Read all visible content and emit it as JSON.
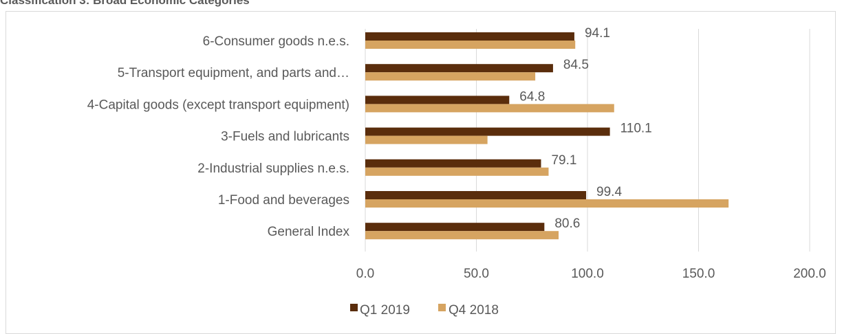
{
  "page": {
    "title": "Classification 3:  Broad Economic Categories"
  },
  "colors": {
    "q1": "#5a2d0c",
    "q4": "#d6a461",
    "grid": "#d9d9d9",
    "text": "#595959"
  },
  "chart_data": {
    "type": "bar",
    "orientation": "horizontal",
    "title": "",
    "xlabel": "",
    "ylabel": "",
    "xlim": [
      0,
      200
    ],
    "x_ticks": [
      "0.0",
      "50.0",
      "100.0",
      "150.0",
      "200.0"
    ],
    "grid": true,
    "legend_position": "bottom",
    "categories": [
      "6-Consumer goods n.e.s.",
      "5-Transport equipment, and parts and…",
      "4-Capital goods (except transport equipment)",
      "3-Fuels and lubricants",
      "2-Industrial supplies n.e.s.",
      "1-Food and beverages",
      "General Index"
    ],
    "series": [
      {
        "name": "Q1 2019",
        "color": "#5a2d0c",
        "values": [
          94.1,
          84.5,
          64.8,
          110.1,
          79.1,
          99.4,
          80.6
        ]
      },
      {
        "name": "Q4 2018",
        "color": "#d6a461",
        "values": [
          94.5,
          76.5,
          112.0,
          55.0,
          82.5,
          163.5,
          87.0
        ]
      }
    ],
    "data_labels": [
      "94.1",
      "84.5",
      "64.8",
      "110.1",
      "79.1",
      "99.4",
      "80.6"
    ]
  }
}
